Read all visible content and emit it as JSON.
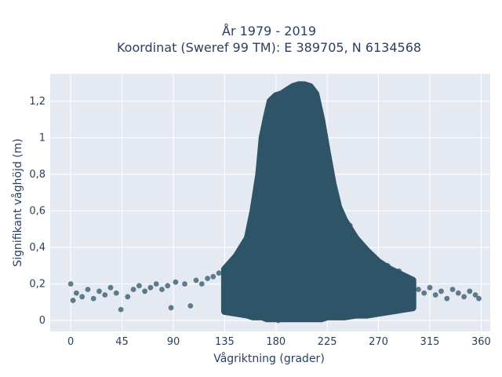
{
  "chart_data": {
    "type": "scatter",
    "title": "År 1979 - 2019",
    "subtitle": "Koordinat (Sweref 99 TM): E 389705, N 6134568",
    "xlabel": "Vågriktning (grader)",
    "ylabel": "Signifikant våghöjd (m)",
    "xlim": [
      -18,
      368
    ],
    "ylim": [
      -0.06,
      1.35
    ],
    "xticks": [
      0,
      45,
      90,
      135,
      180,
      225,
      270,
      315,
      360
    ],
    "xtick_labels": [
      "0",
      "45",
      "90",
      "135",
      "180",
      "225",
      "270",
      "315",
      "360"
    ],
    "yticks": [
      0,
      0.2,
      0.4,
      0.6,
      0.8,
      1,
      1.2
    ],
    "ytick_labels": [
      "0",
      "0,2",
      "0,4",
      "0,6",
      "0,8",
      "1",
      "1,2"
    ],
    "grid": true,
    "legend": "none",
    "colors": {
      "marker": "#2f5468",
      "plot_bg": "#e5e9f2",
      "grid": "#ffffff",
      "text": "#2a3f5f"
    },
    "envelope": {
      "x": [
        135,
        145,
        155,
        160,
        165,
        168,
        172,
        175,
        180,
        185,
        190,
        195,
        200,
        205,
        210,
        215,
        220,
        225,
        230,
        235,
        240,
        250,
        260,
        270,
        280,
        290,
        300
      ],
      "y_upper": [
        0.28,
        0.35,
        0.45,
        0.6,
        0.8,
        1.0,
        1.12,
        1.2,
        1.23,
        1.24,
        1.26,
        1.28,
        1.29,
        1.29,
        1.28,
        1.24,
        1.1,
        0.92,
        0.75,
        0.62,
        0.55,
        0.45,
        0.38,
        0.32,
        0.28,
        0.25,
        0.22
      ],
      "y_lower": [
        0.05,
        0.04,
        0.03,
        0.02,
        0.02,
        0.02,
        0.01,
        0.01,
        0.01,
        0.01,
        0.01,
        0.01,
        0.01,
        0.01,
        0.01,
        0.01,
        0.01,
        0.02,
        0.02,
        0.02,
        0.02,
        0.03,
        0.03,
        0.04,
        0.05,
        0.06,
        0.07
      ]
    },
    "points": [
      {
        "x": 0,
        "y": 0.2
      },
      {
        "x": 2,
        "y": 0.11
      },
      {
        "x": 5,
        "y": 0.15
      },
      {
        "x": 10,
        "y": 0.13
      },
      {
        "x": 15,
        "y": 0.17
      },
      {
        "x": 20,
        "y": 0.12
      },
      {
        "x": 25,
        "y": 0.16
      },
      {
        "x": 30,
        "y": 0.14
      },
      {
        "x": 35,
        "y": 0.18
      },
      {
        "x": 40,
        "y": 0.15
      },
      {
        "x": 44,
        "y": 0.06
      },
      {
        "x": 50,
        "y": 0.13
      },
      {
        "x": 55,
        "y": 0.17
      },
      {
        "x": 60,
        "y": 0.19
      },
      {
        "x": 65,
        "y": 0.16
      },
      {
        "x": 70,
        "y": 0.18
      },
      {
        "x": 75,
        "y": 0.2
      },
      {
        "x": 80,
        "y": 0.17
      },
      {
        "x": 85,
        "y": 0.19
      },
      {
        "x": 88,
        "y": 0.07
      },
      {
        "x": 92,
        "y": 0.21
      },
      {
        "x": 100,
        "y": 0.2
      },
      {
        "x": 105,
        "y": 0.08
      },
      {
        "x": 110,
        "y": 0.22
      },
      {
        "x": 115,
        "y": 0.2
      },
      {
        "x": 120,
        "y": 0.23
      },
      {
        "x": 125,
        "y": 0.24
      },
      {
        "x": 130,
        "y": 0.26
      },
      {
        "x": 300,
        "y": 0.2
      },
      {
        "x": 305,
        "y": 0.17
      },
      {
        "x": 310,
        "y": 0.15
      },
      {
        "x": 315,
        "y": 0.18
      },
      {
        "x": 320,
        "y": 0.14
      },
      {
        "x": 325,
        "y": 0.16
      },
      {
        "x": 330,
        "y": 0.12
      },
      {
        "x": 335,
        "y": 0.17
      },
      {
        "x": 340,
        "y": 0.15
      },
      {
        "x": 345,
        "y": 0.13
      },
      {
        "x": 350,
        "y": 0.16
      },
      {
        "x": 355,
        "y": 0.14
      },
      {
        "x": 358,
        "y": 0.12
      },
      {
        "x": 142,
        "y": 0.32
      },
      {
        "x": 150,
        "y": 0.38
      },
      {
        "x": 262,
        "y": 0.36
      },
      {
        "x": 278,
        "y": 0.3
      },
      {
        "x": 288,
        "y": 0.27
      },
      {
        "x": 296,
        "y": 0.22
      },
      {
        "x": 182,
        "y": 0.0
      },
      {
        "x": 250,
        "y": 0.46
      },
      {
        "x": 245,
        "y": 0.52
      }
    ]
  }
}
